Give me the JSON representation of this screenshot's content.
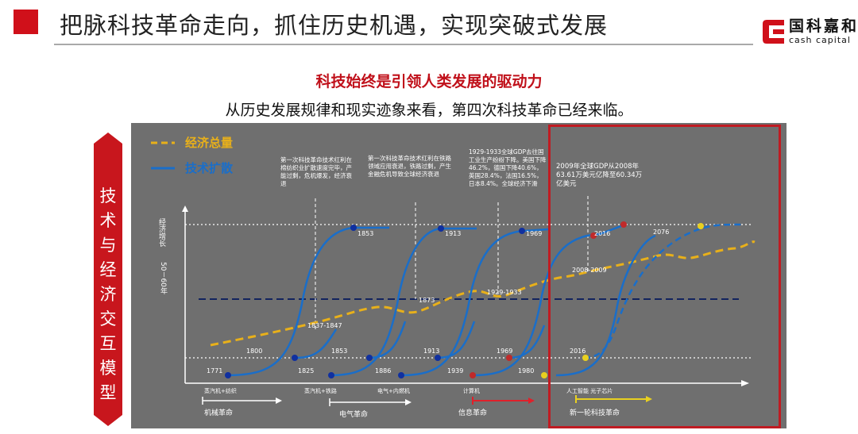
{
  "header": {
    "title": "把脉科技革命走向，抓住历史机遇，实现突破式发展",
    "logo_cn": "国科嘉和",
    "logo_en": "cash capital"
  },
  "subtitle": "科技始终是引领人类发展的驱动力",
  "intro": "从历史发展规律和现实迹象来看，第四次科技革命已经来临。",
  "vertical_title": [
    "技",
    "术",
    "与",
    "经",
    "济",
    "交",
    "互",
    "模",
    "型"
  ],
  "legend": {
    "economy": "经济总量",
    "tech": "技术扩散"
  },
  "y_axis": {
    "label": "经济增长",
    "scale": "50－60年"
  },
  "annotations": {
    "first_rev": "第一次科技革命技术红利在棉纺织业扩散速度完毕，产能过剩，危机爆发，经济衰退",
    "second_rev": "第一次科技革命技术红利在铁路领域应用衰退，铁路过剩，产生金融危机导致全球经济衰退",
    "depression": "1929-1933全球GDP去往国工业生产纷纷下降。美国下降46.2%，德国下降40.6%，英国28.4%，法国16.5%，日本8.4%。全球经济下滑",
    "crisis_2009": "2009年全球GDP从2008年63.61万美元亿降至60.34万亿美元"
  },
  "periods": [
    "1837-1847",
    "1873",
    "1929-1933",
    "2008-2009"
  ],
  "top_years": [
    "1853",
    "1913",
    "1969",
    "2016",
    "2076"
  ],
  "mid_years": [
    "1800",
    "1853",
    "1913",
    "1969",
    "2016"
  ],
  "bottom_years": [
    "1771",
    "1825",
    "1886",
    "1939",
    "1980"
  ],
  "axis_items": [
    "蒸汽机+纺织",
    "蒸汽机+铁路",
    "电气+内燃机",
    "计算机",
    "人工智能 光子芯片"
  ],
  "revolutions": [
    "机械革命",
    "电气革命",
    "信息革命",
    "新一轮科技革命"
  ],
  "colors": {
    "brand_red": "#d0101a",
    "economy_line": "#e8b01a",
    "tech_line": "#1a6ec9",
    "chart_bg": "#6f6f6f"
  }
}
